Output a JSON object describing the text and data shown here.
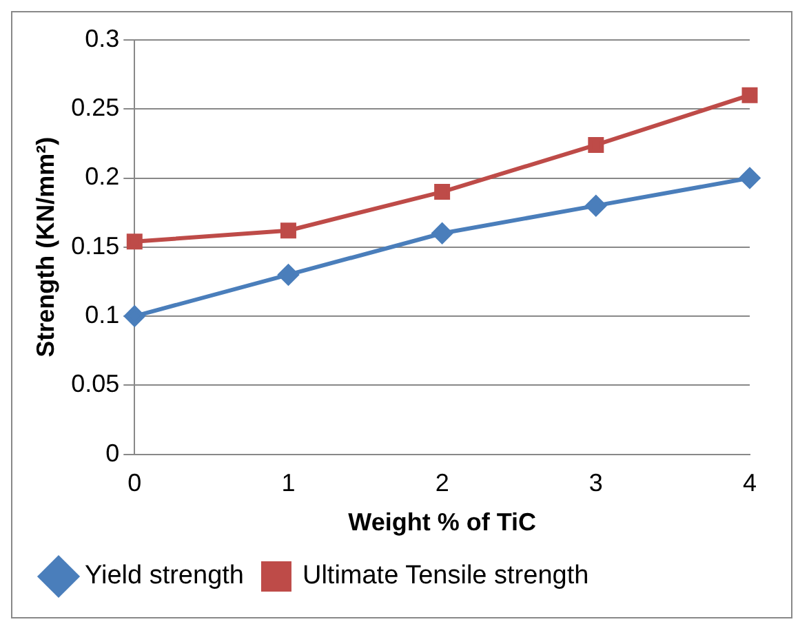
{
  "chart_data": {
    "type": "line",
    "xlabel": "Weight % of TiC",
    "ylabel": "Strength (KN/mm²)",
    "categories": [
      "0",
      "1",
      "2",
      "3",
      "4"
    ],
    "series": [
      {
        "name": "Yield strength",
        "color": "#4a7ebb",
        "values": [
          0.1,
          0.13,
          0.16,
          0.18,
          0.2
        ],
        "marker": "diamond"
      },
      {
        "name": "Ultimate Tensile strength",
        "color": "#be4b48",
        "values": [
          0.154,
          0.162,
          0.19,
          0.224,
          0.26
        ],
        "marker": "square"
      }
    ],
    "ylim": [
      0,
      0.3
    ],
    "yticks": [
      0,
      0.05,
      0.1,
      0.15,
      0.2,
      0.25,
      0.3
    ],
    "grid": "y",
    "legend": "bottom"
  }
}
